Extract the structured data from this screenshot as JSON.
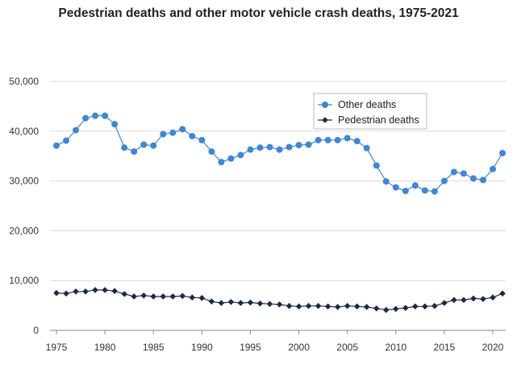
{
  "chart_data": {
    "type": "line",
    "title": "Pedestrian deaths and other motor vehicle crash deaths, 1975-2021",
    "xlabel": "",
    "ylabel": "",
    "xlim": [
      1975,
      2021
    ],
    "ylim": [
      0,
      50000
    ],
    "x_ticks": [
      1975,
      1980,
      1985,
      1990,
      1995,
      2000,
      2005,
      2010,
      2015,
      2020
    ],
    "y_ticks": [
      0,
      10000,
      20000,
      30000,
      40000,
      50000
    ],
    "y_tick_labels": [
      "0",
      "10,000",
      "20,000",
      "30,000",
      "40,000",
      "50,000"
    ],
    "grid": "horizontal",
    "legend_position": "top-right",
    "x": [
      1975,
      1976,
      1977,
      1978,
      1979,
      1980,
      1981,
      1982,
      1983,
      1984,
      1985,
      1986,
      1987,
      1988,
      1989,
      1990,
      1991,
      1992,
      1993,
      1994,
      1995,
      1996,
      1997,
      1998,
      1999,
      2000,
      2001,
      2002,
      2003,
      2004,
      2005,
      2006,
      2007,
      2008,
      2009,
      2010,
      2011,
      2012,
      2013,
      2014,
      2015,
      2016,
      2017,
      2018,
      2019,
      2020,
      2021
    ],
    "series": [
      {
        "name": "Other deaths",
        "color": "#3f86d4",
        "marker": "circle",
        "values": [
          37100,
          38100,
          40200,
          42600,
          43100,
          43100,
          41400,
          36700,
          35900,
          37300,
          37100,
          39400,
          39700,
          40400,
          39000,
          38200,
          35900,
          33800,
          34500,
          35200,
          36300,
          36700,
          36800,
          36300,
          36800,
          37200,
          37300,
          38200,
          38200,
          38200,
          38600,
          38000,
          36600,
          33100,
          29900,
          28700,
          28000,
          29100,
          28100,
          27900,
          30000,
          31800,
          31500,
          30500,
          30200,
          32400,
          35600
        ]
      },
      {
        "name": "Pedestrian deaths",
        "color": "#1b2a44",
        "marker": "diamond",
        "values": [
          7500,
          7400,
          7800,
          7800,
          8100,
          8100,
          7900,
          7300,
          6800,
          7000,
          6800,
          6800,
          6800,
          6900,
          6600,
          6500,
          5800,
          5500,
          5700,
          5500,
          5600,
          5400,
          5300,
          5200,
          4900,
          4800,
          4900,
          4900,
          4800,
          4700,
          4900,
          4800,
          4700,
          4400,
          4100,
          4300,
          4500,
          4800,
          4800,
          4900,
          5500,
          6100,
          6100,
          6400,
          6300,
          6600,
          7400
        ]
      }
    ]
  }
}
